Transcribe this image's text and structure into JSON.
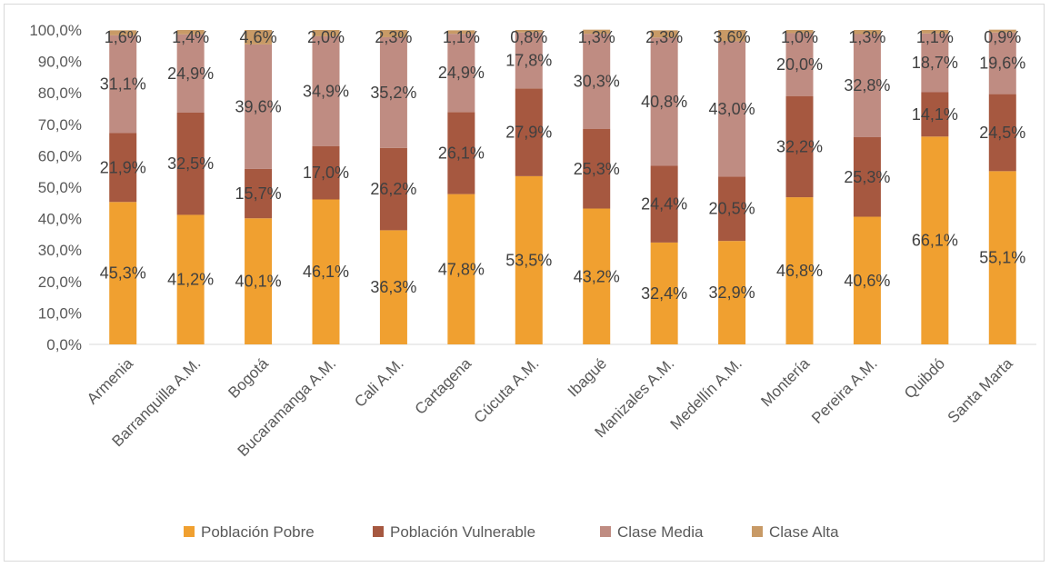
{
  "chart_data": {
    "type": "bar",
    "stacked": true,
    "categories": [
      "Armenia",
      "Barranquilla A.M.",
      "Bogotá",
      "Bucaramanga A.M.",
      "Cali A.M.",
      "Cartagena",
      "Cúcuta A.M.",
      "Ibagué",
      "Manizales A.M.",
      "Medellín A.M.",
      "Montería",
      "Pereira A.M.",
      "Quibdó",
      "Santa Marta"
    ],
    "series": [
      {
        "name": "Población Pobre",
        "color": "#F0A030",
        "values": [
          45.3,
          41.2,
          40.1,
          46.1,
          36.3,
          47.8,
          53.5,
          43.2,
          32.4,
          32.9,
          46.8,
          40.6,
          66.1,
          55.1
        ]
      },
      {
        "name": "Población Vulnerable",
        "color": "#A65840",
        "values": [
          21.9,
          32.5,
          15.7,
          17.0,
          26.2,
          26.1,
          27.9,
          25.3,
          24.4,
          20.5,
          32.2,
          25.3,
          14.1,
          24.5
        ]
      },
      {
        "name": "Clase Media",
        "color": "#BF8C82",
        "values": [
          31.1,
          24.9,
          39.6,
          34.9,
          35.2,
          24.9,
          17.8,
          30.3,
          40.8,
          43.0,
          20.0,
          32.8,
          18.7,
          19.6
        ]
      },
      {
        "name": "Clase Alta",
        "color": "#C89A66",
        "values": [
          1.6,
          1.4,
          4.6,
          2.0,
          2.3,
          1.1,
          0.8,
          1.3,
          2.3,
          3.6,
          1.0,
          1.3,
          1.1,
          0.9
        ]
      }
    ],
    "yticks": [
      "0,0%",
      "10,0%",
      "20,0%",
      "30,0%",
      "40,0%",
      "50,0%",
      "60,0%",
      "70,0%",
      "80,0%",
      "90,0%",
      "100,0%"
    ],
    "ylim": [
      0,
      100
    ],
    "grid": false,
    "legend_position": "bottom",
    "title": "",
    "xlabel": "",
    "ylabel": ""
  }
}
